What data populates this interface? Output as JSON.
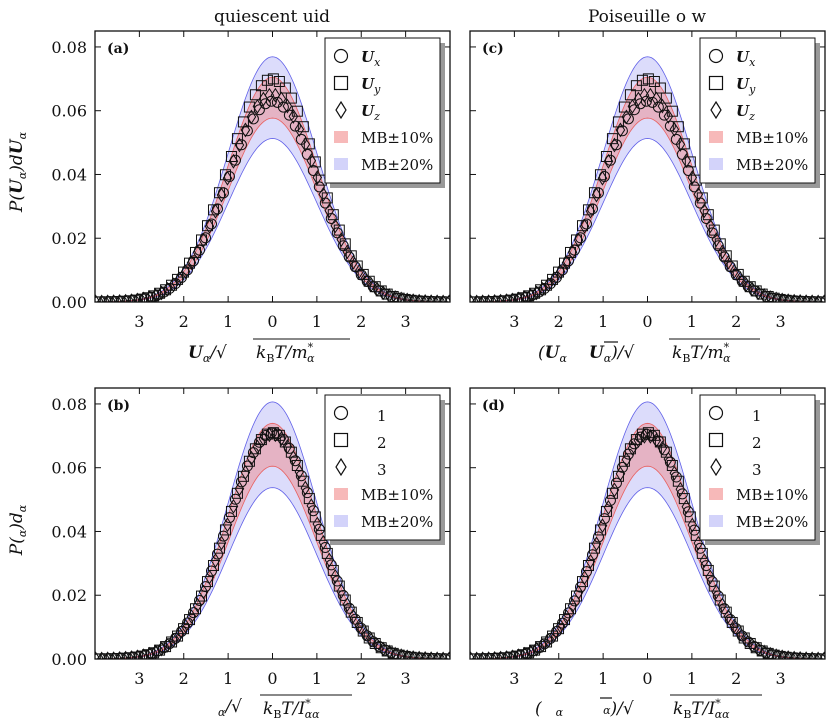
{
  "figure": {
    "col_titles": [
      "quiescent   uid",
      "Poiseuille   o w"
    ],
    "row_ylabels": [
      "P(U_α)dU_α",
      "P(  α)d   α"
    ]
  },
  "chart_data": [
    {
      "id": "a",
      "type": "scatter",
      "panel_label": "(a)",
      "title": "quiescent   uid",
      "ylabel": "P(U_α)dU_α",
      "xlabel": "U_α/√(k_BT/m*_α)",
      "xlim": [
        -4.0,
        4.0
      ],
      "ylim": [
        0.0,
        0.085
      ],
      "xticks": [
        -3,
        -2,
        -1,
        0,
        1,
        2,
        3
      ],
      "xtick_labels": [
        "3",
        "2",
        "1",
        "0",
        "1",
        "2",
        "3"
      ],
      "yticks": [
        0.0,
        0.02,
        0.04,
        0.06,
        0.08
      ],
      "ytick_labels": [
        "0.00",
        "0.02",
        "0.04",
        "0.06",
        "0.08"
      ],
      "mb_peak": 0.0641,
      "bands": [
        {
          "name": "MB±10%",
          "fraction": 0.1,
          "color": "#f08080"
        },
        {
          "name": "MB±20%",
          "fraction": 0.2,
          "color": "#8080f0"
        }
      ],
      "series": [
        {
          "name": "U_x",
          "marker": "circle",
          "peak": 0.063
        },
        {
          "name": "U_y",
          "marker": "square",
          "peak": 0.07
        },
        {
          "name": "U_z",
          "marker": "diamond",
          "peak": 0.065
        }
      ],
      "legend": [
        "U_x",
        "U_y",
        "U_z",
        "MB±10%",
        "MB±20%"
      ]
    },
    {
      "id": "c",
      "type": "scatter",
      "panel_label": "(c)",
      "title": "Poiseuille   o w",
      "ylabel": "",
      "xlabel": "(U_α    U̅_α)/√(k_BT/m*_α)",
      "xlim": [
        -4.0,
        4.0
      ],
      "ylim": [
        0.0,
        0.085
      ],
      "xticks": [
        -3,
        -2,
        -1,
        0,
        1,
        2,
        3
      ],
      "xtick_labels": [
        "3",
        "2",
        "1",
        "0",
        "1",
        "2",
        "3"
      ],
      "yticks": [
        0.0,
        0.02,
        0.04,
        0.06,
        0.08
      ],
      "ytick_labels": [
        "0.00",
        "0.02",
        "0.04",
        "0.06",
        "0.08"
      ],
      "mb_peak": 0.0641,
      "bands": [
        {
          "name": "MB±10%",
          "fraction": 0.1,
          "color": "#f08080"
        },
        {
          "name": "MB±20%",
          "fraction": 0.2,
          "color": "#8080f0"
        }
      ],
      "series": [
        {
          "name": "U_x",
          "marker": "circle",
          "peak": 0.063
        },
        {
          "name": "U_y",
          "marker": "square",
          "peak": 0.07
        },
        {
          "name": "U_z",
          "marker": "diamond",
          "peak": 0.065
        }
      ],
      "legend": [
        "U_x",
        "U_y",
        "U_z",
        "MB±10%",
        "MB±20%"
      ]
    },
    {
      "id": "b",
      "type": "scatter",
      "panel_label": "(b)",
      "title": "",
      "ylabel": "P(  α)d   α",
      "xlabel": "  α/√(k_BT/I*_αα)",
      "xlim": [
        -4.0,
        4.0
      ],
      "ylim": [
        0.0,
        0.085
      ],
      "xticks": [
        -3,
        -2,
        -1,
        0,
        1,
        2,
        3
      ],
      "xtick_labels": [
        "3",
        "2",
        "1",
        "0",
        "1",
        "2",
        "3"
      ],
      "yticks": [
        0.0,
        0.02,
        0.04,
        0.06,
        0.08
      ],
      "ytick_labels": [
        "0.00",
        "0.02",
        "0.04",
        "0.06",
        "0.08"
      ],
      "mb_peak": 0.0672,
      "bands": [
        {
          "name": "MB±10%",
          "fraction": 0.1,
          "color": "#f08080"
        },
        {
          "name": "MB±20%",
          "fraction": 0.2,
          "color": "#8080f0"
        }
      ],
      "series": [
        {
          "name": "1",
          "marker": "circle",
          "peak": 0.071
        },
        {
          "name": "2",
          "marker": "square",
          "peak": 0.071
        },
        {
          "name": "3",
          "marker": "diamond",
          "peak": 0.0705
        }
      ],
      "legend": [
        "1",
        "2",
        "3",
        "MB±10%",
        "MB±20%"
      ]
    },
    {
      "id": "d",
      "type": "scatter",
      "panel_label": "(d)",
      "title": "",
      "ylabel": "",
      "xlabel": "(   α     ‾  α)/√(k_BT/I*_αα)",
      "xlim": [
        -4.0,
        4.0
      ],
      "ylim": [
        0.0,
        0.085
      ],
      "xticks": [
        -3,
        -2,
        -1,
        0,
        1,
        2,
        3
      ],
      "xtick_labels": [
        "3",
        "2",
        "1",
        "0",
        "1",
        "2",
        "3"
      ],
      "yticks": [
        0.0,
        0.02,
        0.04,
        0.06,
        0.08
      ],
      "ytick_labels": [
        "0.00",
        "0.02",
        "0.04",
        "0.06",
        "0.08"
      ],
      "mb_peak": 0.0672,
      "bands": [
        {
          "name": "MB±10%",
          "fraction": 0.1,
          "color": "#f08080"
        },
        {
          "name": "MB±20%",
          "fraction": 0.2,
          "color": "#8080f0"
        }
      ],
      "series": [
        {
          "name": "1",
          "marker": "circle",
          "peak": 0.0705
        },
        {
          "name": "2",
          "marker": "square",
          "peak": 0.071
        },
        {
          "name": "3",
          "marker": "diamond",
          "peak": 0.07
        }
      ],
      "legend": [
        "1",
        "2",
        "3",
        "MB±10%",
        "MB±20%"
      ]
    }
  ]
}
